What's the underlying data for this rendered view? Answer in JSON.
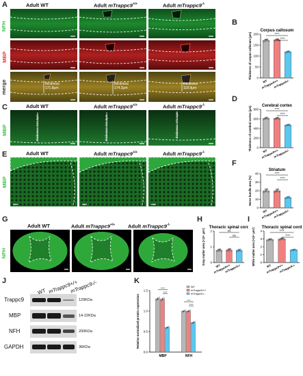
{
  "panel_letters": [
    "A",
    "B",
    "C",
    "D",
    "E",
    "F",
    "G",
    "H",
    "I",
    "J",
    "K"
  ],
  "groups": {
    "wt": "Adult  WT",
    "plus_prefix": "Adult  ",
    "plus_gene": "mTrappc9",
    "plus_sup": "+/+",
    "minus_prefix": "Adult  ",
    "minus_gene": "mTrappc9",
    "minus_sup": "-/-"
  },
  "row_labels": {
    "nfh": "NFH",
    "mbp": "MBP",
    "merge": "merge"
  },
  "thickness_labels": [
    "thickness\n171.8μm",
    "thickness\n174.2μm",
    "thickness\n118.9μm"
  ],
  "cortex_labels": [
    "thickness: 612.3μm",
    "thickness: 611.8μm",
    "thickness: 472.4μm"
  ],
  "x_categories": [
    "WT",
    "mTrappc9+/+",
    "mTrappc9-/-"
  ],
  "colors": {
    "wt": "#b7b7b7",
    "plus": "#f08080",
    "minus": "#5bc8f0"
  },
  "chart_data": [
    {
      "type": "bar",
      "panel": "B",
      "title": "Corpus callosum",
      "ylabel": "Thickness of corpus callosum (μm)",
      "ylim": [
        0,
        200
      ],
      "yticks": [
        0,
        50,
        100,
        150,
        200
      ],
      "categories": [
        "WT",
        "mTrappc9+/+",
        "mTrappc9-/-"
      ],
      "values": [
        172,
        174,
        119
      ],
      "errors": [
        5,
        4,
        3
      ],
      "significance": [
        "****",
        "****"
      ]
    },
    {
      "type": "bar",
      "panel": "D",
      "title": "Cerebral cortex",
      "ylabel": "Thickness of cerebral cortex (μm)",
      "ylim": [
        0,
        800
      ],
      "yticks": [
        0,
        200,
        400,
        600,
        800
      ],
      "categories": [
        "WT",
        "mTrappc9+/+",
        "mTrappc9-/-"
      ],
      "values": [
        612,
        612,
        472
      ],
      "errors": [
        18,
        16,
        12
      ],
      "significance": [
        "****",
        "****"
      ]
    },
    {
      "type": "bar",
      "panel": "F",
      "title": "Striatum",
      "ylabel": "Nerve bundle area (%)",
      "ylim": [
        0,
        40
      ],
      "yticks": [
        0,
        10,
        20,
        30,
        40
      ],
      "categories": [
        "WT",
        "mTrappc9+/+",
        "mTrappc9-/-"
      ],
      "values": [
        20,
        20,
        12
      ],
      "errors": [
        1.8,
        1.7,
        0.9
      ],
      "significance": [
        "****",
        "****"
      ]
    },
    {
      "type": "bar",
      "panel": "H",
      "title": "Thoracic spinal cord",
      "ylabel": "Gray matter area (×10⁶ μm²)",
      "ylim": [
        0,
        2
      ],
      "yticks": [
        0,
        1,
        2
      ],
      "categories": [
        "WT",
        "mTrappc9+/+",
        "mTrappc9-/-"
      ],
      "values": [
        0.78,
        0.8,
        0.77
      ],
      "errors": [
        0.06,
        0.07,
        0.06
      ],
      "significance": [
        "ns",
        "ns"
      ]
    },
    {
      "type": "bar",
      "panel": "I",
      "title": "Thoracic spinal cord",
      "ylabel": "White matter area (×10⁶ μm²)",
      "ylim": [
        0,
        4
      ],
      "yticks": [
        0,
        1,
        2,
        3,
        4
      ],
      "categories": [
        "WT",
        "mTrappc9+/+",
        "mTrappc9-/-"
      ],
      "values": [
        2.9,
        3.0,
        1.6
      ],
      "errors": [
        0.1,
        0.12,
        0.06
      ],
      "significance": [
        "****",
        "****"
      ]
    },
    {
      "type": "bar",
      "panel": "K",
      "ylabel": "Relative normalized protein expression",
      "ylim": [
        0,
        1.5
      ],
      "yticks": [
        0.0,
        0.5,
        1.0,
        1.5
      ],
      "categories": [
        "MBP",
        "NFH"
      ],
      "series": [
        {
          "name": "WT",
          "values": [
            1.3,
            1.0
          ],
          "errors": [
            0.03,
            0.02
          ]
        },
        {
          "name": "mTrappc9+/+",
          "values": [
            1.29,
            1.0
          ],
          "errors": [
            0.03,
            0.02
          ]
        },
        {
          "name": "mTrappc9-/-",
          "values": [
            0.6,
            0.72
          ],
          "errors": [
            0.02,
            0.02
          ]
        }
      ],
      "significance": [
        "****",
        "****",
        "****",
        "****"
      ]
    }
  ],
  "western": {
    "headers": [
      "WT",
      "mTrappc9+/+",
      "mTrappc9-/-"
    ],
    "proteins": [
      "Trappc9",
      "MBP",
      "NFH",
      "GAPDH"
    ],
    "sizes": [
      "129KDa",
      "14-22KDa",
      "200KDa",
      "36KDa"
    ]
  }
}
